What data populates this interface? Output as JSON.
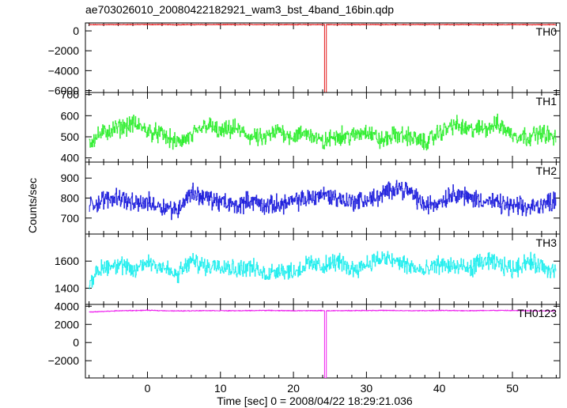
{
  "chart_data": {
    "type": "line",
    "title": "ae703026010_20080422182921_wam3_bst_4band_16bin.qdp",
    "xlabel": "Time [sec] 0 = 2008/04/22 18:29:21.036",
    "ylabel": "Counts/sec",
    "xlim": [
      -8.5,
      56.5
    ],
    "x_ticks": [
      0,
      10,
      20,
      30,
      40,
      50
    ],
    "grid": false,
    "panels": [
      {
        "name": "TH0",
        "color": "#e41a1c",
        "ylim": [
          -6200,
          800
        ],
        "y_ticks": [
          0,
          -2000,
          -4000,
          -6000
        ],
        "series": {
          "x": [
            -8,
            -4,
            0,
            4,
            8,
            12,
            16,
            20,
            24,
            24.25,
            24.5,
            28,
            32,
            36,
            40,
            44,
            48,
            52,
            56
          ],
          "values": [
            620,
            630,
            640,
            625,
            635,
            628,
            640,
            632,
            630,
            -6200,
            630,
            628,
            635,
            630,
            638,
            632,
            630,
            628,
            625
          ]
        }
      },
      {
        "name": "TH1",
        "color": "#33ee33",
        "ylim": [
          380,
          710
        ],
        "y_ticks": [
          400,
          500,
          600,
          700
        ],
        "series": {
          "x": [
            -8,
            -6,
            -4,
            -2,
            0,
            2,
            4,
            6,
            8,
            10,
            12,
            14,
            16,
            18,
            20,
            22,
            24,
            26,
            28,
            30,
            32,
            34,
            36,
            38,
            40,
            42,
            44,
            46,
            48,
            50,
            52,
            54,
            56
          ],
          "values": [
            480,
            520,
            540,
            560,
            530,
            510,
            470,
            500,
            560,
            520,
            540,
            500,
            490,
            530,
            500,
            520,
            470,
            510,
            500,
            530,
            480,
            510,
            500,
            470,
            520,
            560,
            530,
            540,
            560,
            510,
            500,
            520,
            490
          ]
        }
      },
      {
        "name": "TH2",
        "color": "#2222dd",
        "ylim": [
          620,
          980
        ],
        "y_ticks": [
          700,
          800,
          900
        ],
        "series": {
          "x": [
            -8,
            -6,
            -4,
            -2,
            0,
            2,
            4,
            6,
            8,
            10,
            12,
            14,
            16,
            18,
            20,
            22,
            24,
            26,
            28,
            30,
            32,
            34,
            36,
            38,
            40,
            42,
            44,
            46,
            48,
            50,
            52,
            54,
            56
          ],
          "values": [
            760,
            790,
            810,
            770,
            780,
            760,
            740,
            830,
            800,
            780,
            760,
            790,
            760,
            770,
            780,
            800,
            820,
            800,
            780,
            790,
            810,
            860,
            830,
            760,
            780,
            830,
            800,
            790,
            770,
            760,
            750,
            770,
            790
          ]
        }
      },
      {
        "name": "TH3",
        "color": "#22eeee",
        "ylim": [
          1280,
          1800
        ],
        "y_ticks": [
          1400,
          1600
        ],
        "series": {
          "x": [
            -8,
            -6,
            -4,
            -2,
            0,
            2,
            4,
            6,
            8,
            10,
            12,
            14,
            16,
            18,
            20,
            22,
            24,
            26,
            28,
            30,
            32,
            34,
            36,
            38,
            40,
            42,
            44,
            46,
            48,
            50,
            52,
            54,
            56
          ],
          "values": [
            1450,
            1560,
            1580,
            1520,
            1600,
            1560,
            1490,
            1600,
            1560,
            1580,
            1540,
            1560,
            1500,
            1540,
            1520,
            1580,
            1560,
            1600,
            1540,
            1580,
            1620,
            1600,
            1560,
            1520,
            1580,
            1560,
            1540,
            1600,
            1580,
            1540,
            1600,
            1560,
            1520
          ]
        }
      },
      {
        "name": "TH0123",
        "color": "#ee22ee",
        "ylim": [
          -3900,
          4200
        ],
        "y_ticks": [
          4000,
          2000,
          0,
          -2000
        ],
        "series": {
          "x": [
            -8,
            -4,
            0,
            4,
            8,
            12,
            16,
            20,
            24,
            24.25,
            24.5,
            28,
            32,
            36,
            40,
            44,
            48,
            52,
            56
          ],
          "values": [
            3350,
            3500,
            3550,
            3480,
            3520,
            3500,
            3540,
            3500,
            3520,
            -3900,
            3500,
            3520,
            3540,
            3500,
            3530,
            3510,
            3540,
            3500,
            3480
          ]
        }
      }
    ]
  }
}
